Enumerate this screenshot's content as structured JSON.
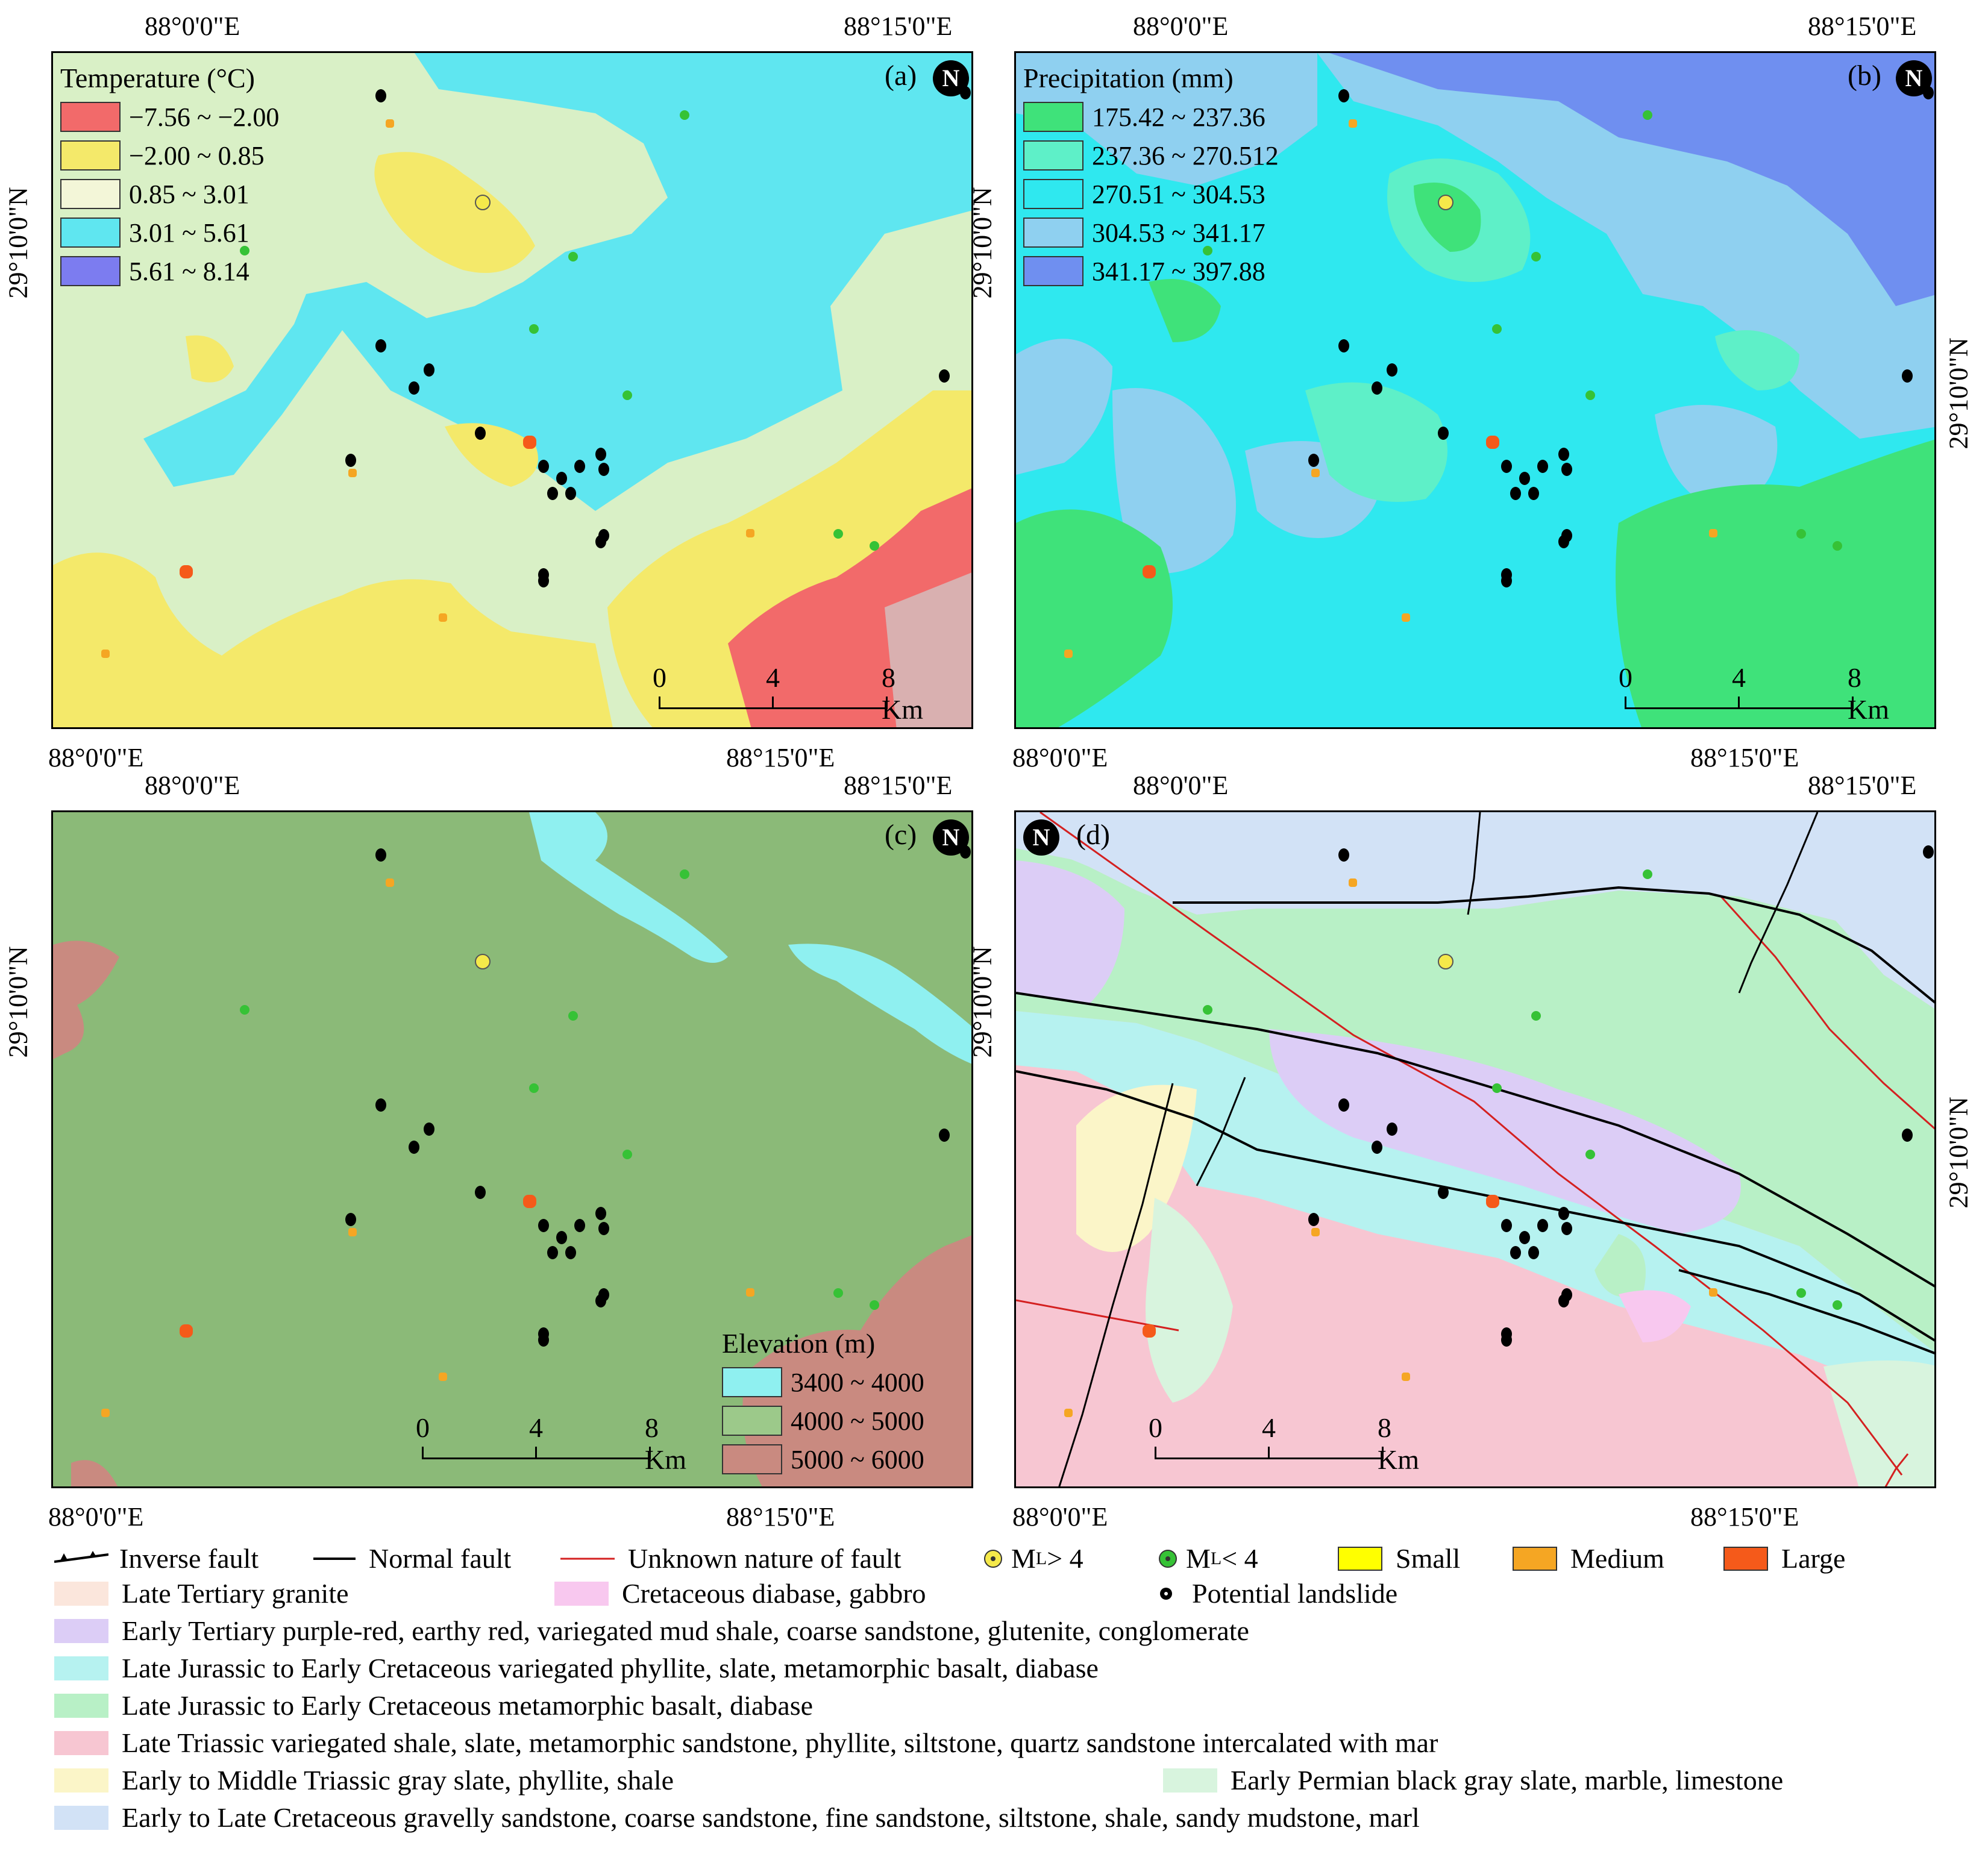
{
  "coords": {
    "lon_left": "88°0'0\"E",
    "lon_right": "88°15'0\"E",
    "lat": "29°10'0\"N"
  },
  "panels": {
    "a": {
      "label": "(a)",
      "legend_title": "Temperature (°C)",
      "classes": [
        {
          "label": "−7.56 ~ −2.00",
          "color": "#f26a6a"
        },
        {
          "label": "−2.00 ~ 0.85",
          "color": "#f4e96a"
        },
        {
          "label": "0.85 ~ 3.01",
          "color": "#f3f6d8"
        },
        {
          "label": "3.01 ~ 5.61",
          "color": "#5fe6f0"
        },
        {
          "label": "5.61 ~ 8.14",
          "color": "#7c7cf0"
        }
      ]
    },
    "b": {
      "label": "(b)",
      "legend_title": "Precipitation (mm)",
      "classes": [
        {
          "label": "175.42 ~ 237.36",
          "color": "#3fe27a"
        },
        {
          "label": "237.36 ~ 270.512",
          "color": "#5ef0c8"
        },
        {
          "label": "270.51 ~ 304.53",
          "color": "#2fe8ef"
        },
        {
          "label": "304.53 ~ 341.17",
          "color": "#8fd0f0"
        },
        {
          "label": "341.17 ~ 397.88",
          "color": "#6f8ff0"
        }
      ]
    },
    "c": {
      "label": "(c)",
      "legend_title": "Elevation (m)",
      "classes": [
        {
          "label": "3400 ~ 4000",
          "color": "#8ff0f0"
        },
        {
          "label": "4000 ~ 5000",
          "color": "#9cc98a"
        },
        {
          "label": "5000 ~ 6000",
          "color": "#c98a80"
        }
      ]
    },
    "d": {
      "label": "(d)"
    }
  },
  "north_symbol": "N",
  "scale": {
    "zero": "0",
    "mid": "4",
    "end": "8 Km"
  },
  "legend": {
    "inverse_fault": "Inverse fault",
    "normal_fault": "Normal fault",
    "unknown_fault": "Unknown nature of fault",
    "ml_gt4": "M",
    "ml_gt4_sub": "L",
    "ml_gt4_rest": " > 4",
    "ml_lt4": "M",
    "ml_lt4_sub": "L",
    "ml_lt4_rest": "<  4",
    "small": "Small",
    "medium": "Medium",
    "large": "Large",
    "potential": "Potential landslide",
    "lithology": [
      {
        "label": "Late Tertiary granite",
        "color": "#fbe6dc"
      },
      {
        "label": "Cretaceous diabase, gabbro",
        "color": "#f8c8ef"
      },
      {
        "label": "Early Tertiary purple-red, earthy red, variegated mud shale, coarse sandstone, glutenite, conglomerate",
        "color": "#dccdf6"
      },
      {
        "label": "Late Jurassic to Early Cretaceous variegated phyllite, slate, metamorphic basalt, diabase",
        "color": "#b6f2f0"
      },
      {
        "label": "Late Jurassic to Early Cretaceous metamorphic basalt, diabase",
        "color": "#b8f0c6"
      },
      {
        "label": "Late Triassic variegated shale, slate, metamorphic sandstone, phyllite, siltstone, quartz sandstone intercalated with mar",
        "color": "#f7c6d2"
      },
      {
        "label": "Early to Middle Triassic gray slate, phyllite, shale",
        "color": "#fbf5c8"
      },
      {
        "label": "Early Permian black gray slate, marble, limestone",
        "color": "#d8f4de"
      },
      {
        "label": "Early to Late Cretaceous gravelly sandstone, coarse sandstone, fine sandstone, siltstone, shale, sandy mudstone, marl",
        "color": "#d2e2f6"
      }
    ]
  },
  "colors": {
    "quake_large": "#f5e94a",
    "quake_small": "#36c236",
    "fault_unknown": "#d42020",
    "landslide_small": "#ffff00",
    "landslide_medium": "#f5a623",
    "landslide_large": "#f55a1a"
  }
}
